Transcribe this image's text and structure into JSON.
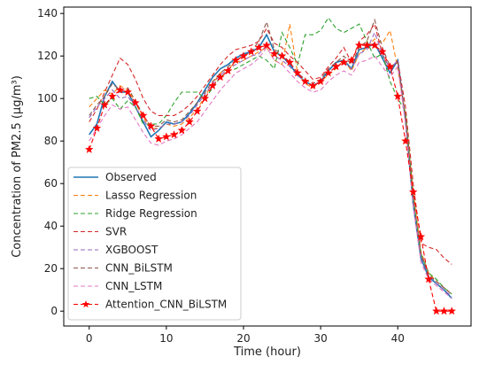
{
  "chart_data": {
    "type": "line",
    "xlabel": "Time (hour)",
    "ylabel": "Concentration of PM2.5 (μg/m³)",
    "xlim": [
      -3.3,
      49.5
    ],
    "ylim": [
      -7,
      143
    ],
    "xticks": [
      0,
      10,
      20,
      30,
      40
    ],
    "yticks": [
      0,
      20,
      40,
      60,
      80,
      100,
      120,
      140
    ],
    "grid": false,
    "legend_position": "lower-left",
    "x": [
      0,
      1,
      2,
      3,
      4,
      5,
      6,
      7,
      8,
      9,
      10,
      11,
      12,
      13,
      14,
      15,
      16,
      17,
      18,
      19,
      20,
      21,
      22,
      23,
      24,
      25,
      26,
      27,
      28,
      29,
      30,
      31,
      32,
      33,
      34,
      35,
      36,
      37,
      38,
      39,
      40,
      41,
      42,
      43,
      44,
      45,
      46,
      47
    ],
    "series": [
      {
        "name": "Observed",
        "color": "#1f77b4",
        "style": "solid",
        "marker": false,
        "values": [
          83,
          88,
          101,
          108,
          103,
          103,
          96,
          89,
          82,
          85,
          89,
          88,
          89,
          93,
          98,
          104,
          110,
          114,
          116,
          119,
          121,
          122,
          124,
          130,
          122,
          120,
          116,
          111,
          108,
          106,
          108,
          113,
          117,
          118,
          114,
          123,
          124,
          126,
          119,
          112,
          118,
          90,
          50,
          25,
          16,
          13,
          10,
          6
        ]
      },
      {
        "name": "Lasso Regression",
        "color": "#ff7f0e",
        "style": "dashed",
        "marker": false,
        "values": [
          96,
          100,
          104,
          102,
          106,
          104,
          98,
          91,
          86,
          86,
          88,
          87,
          88,
          91,
          95,
          101,
          107,
          112,
          114,
          117,
          118,
          120,
          122,
          124,
          118,
          116,
          135,
          112,
          107,
          105,
          108,
          111,
          114,
          118,
          113,
          121,
          124,
          128,
          126,
          132,
          114,
          92,
          56,
          28,
          18,
          14,
          11,
          8
        ]
      },
      {
        "name": "Ridge Regression",
        "color": "#2ca02c",
        "style": "dashed",
        "marker": false,
        "values": [
          100,
          101,
          97,
          100,
          95,
          99,
          96,
          88,
          88,
          88,
          92,
          98,
          103,
          103,
          103,
          100,
          105,
          110,
          113,
          114,
          116,
          118,
          120,
          118,
          114,
          131,
          124,
          116,
          130,
          130,
          132,
          138,
          133,
          131,
          133,
          135,
          127,
          119,
          121,
          108,
          100,
          94,
          54,
          27,
          18,
          15,
          11,
          8
        ]
      },
      {
        "name": "SVR",
        "color": "#d62728",
        "style": "dashed",
        "marker": false,
        "values": [
          89,
          95,
          103,
          111,
          119,
          116,
          109,
          100,
          94,
          92,
          92,
          92,
          94,
          97,
          101,
          106,
          111,
          116,
          120,
          123,
          124,
          125,
          127,
          133,
          126,
          124,
          120,
          117,
          113,
          109,
          110,
          115,
          119,
          124,
          117,
          127,
          130,
          135,
          121,
          113,
          118,
          96,
          60,
          32,
          30,
          29,
          25,
          22
        ]
      },
      {
        "name": "XGBOOST",
        "color": "#9467bd",
        "style": "dashed",
        "marker": false,
        "values": [
          91,
          96,
          100,
          104,
          100,
          101,
          96,
          90,
          85,
          86,
          88,
          88,
          89,
          92,
          97,
          102,
          107,
          111,
          114,
          116,
          118,
          120,
          121,
          125,
          120,
          118,
          115,
          111,
          108,
          106,
          108,
          112,
          115,
          117,
          114,
          121,
          123,
          131,
          121,
          114,
          118,
          89,
          52,
          26,
          17,
          13,
          10,
          7
        ]
      },
      {
        "name": "CNN_BiLSTM",
        "color": "#8c564b",
        "style": "dashed",
        "marker": false,
        "values": [
          92,
          97,
          101,
          107,
          104,
          105,
          99,
          92,
          87,
          87,
          90,
          89,
          90,
          94,
          98,
          103,
          108,
          112,
          115,
          118,
          120,
          122,
          127,
          136,
          123,
          121,
          117,
          112,
          109,
          107,
          109,
          114,
          117,
          120,
          116,
          124,
          127,
          137,
          124,
          115,
          117,
          91,
          53,
          27,
          17,
          14,
          11,
          8
        ]
      },
      {
        "name": "CNN_LSTM",
        "color": "#e377c2",
        "style": "dashed",
        "marker": false,
        "values": [
          80,
          86,
          92,
          97,
          95,
          96,
          90,
          84,
          79,
          78,
          80,
          81,
          83,
          86,
          89,
          94,
          99,
          104,
          108,
          112,
          114,
          116,
          119,
          124,
          118,
          116,
          112,
          108,
          105,
          103,
          104,
          108,
          111,
          113,
          111,
          117,
          118,
          120,
          115,
          110,
          115,
          88,
          50,
          23,
          15,
          12,
          9,
          6
        ]
      },
      {
        "name": "Attention_CNN_BiLSTM",
        "color": "#ff0000",
        "style": "dashed",
        "marker": true,
        "values": [
          76,
          86,
          97,
          101,
          104,
          103,
          98,
          92,
          87,
          81,
          82,
          83,
          85,
          89,
          94,
          100,
          106,
          110,
          113,
          118,
          120,
          122,
          124,
          125,
          121,
          120,
          117,
          112,
          108,
          106,
          108,
          112,
          115,
          117,
          118,
          125,
          125,
          125,
          122,
          115,
          101,
          80,
          56,
          35,
          15,
          0,
          0,
          0
        ]
      }
    ]
  }
}
